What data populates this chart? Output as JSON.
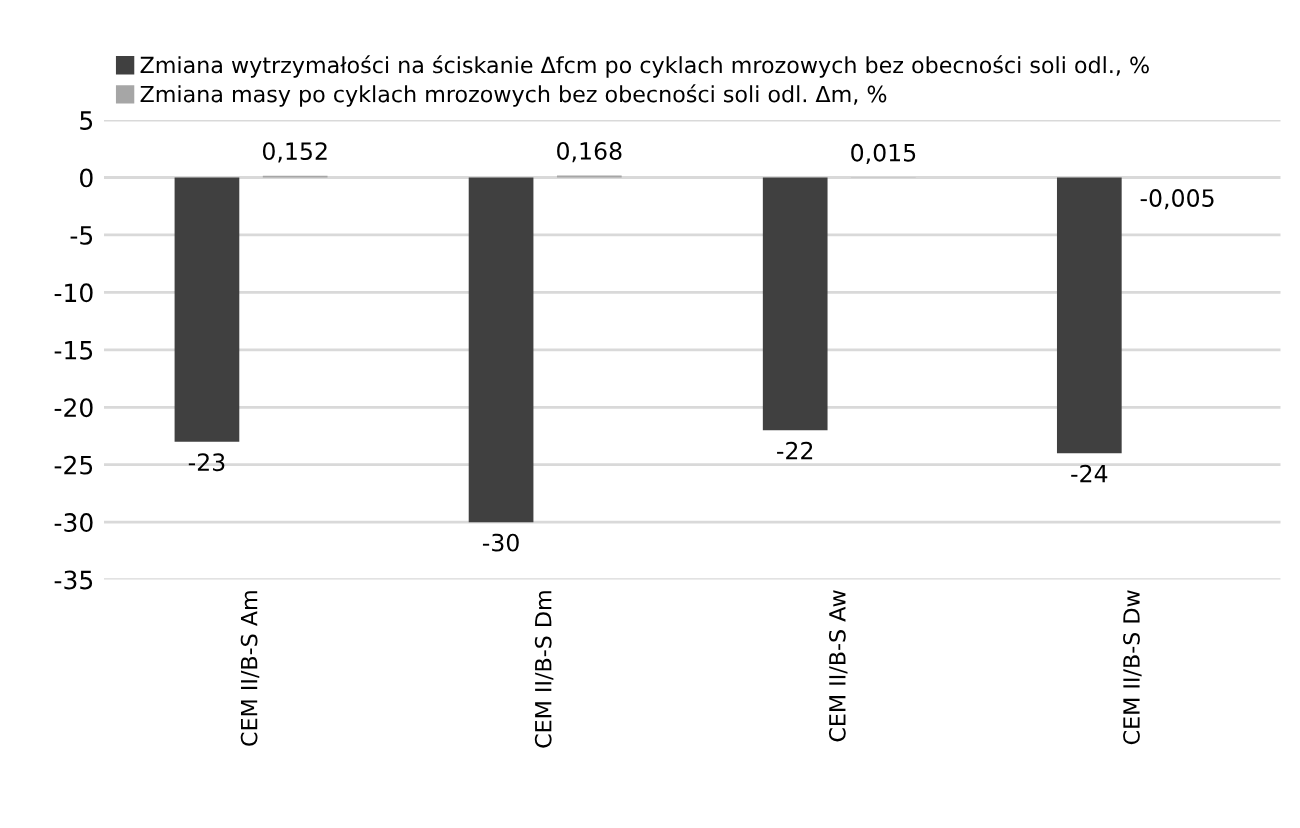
{
  "chart_data": {
    "type": "bar",
    "categories": [
      "CEM II/B-S Am",
      "CEM II/B-S Dm",
      "CEM II/B-S Aw",
      "CEM II/B-S Dw"
    ],
    "series": [
      {
        "name": "Zmiana wytrzymałości na ściskanie Δfcm po cyklach mrozowych bez obecności soli odl., %",
        "color": "#404040",
        "values": [
          -23,
          -30,
          -22,
          -24
        ],
        "value_labels": [
          "-23",
          "-30",
          "-22",
          "-24"
        ]
      },
      {
        "name": "Zmiana masy po cyklach mrozowych bez obecności soli odl. Δm, %",
        "color": "#a6a6a6",
        "values": [
          0.152,
          0.168,
          0.015,
          -0.005
        ],
        "value_labels": [
          "0,152",
          "0,168",
          "0,015",
          "-0,005"
        ]
      }
    ],
    "ylim": [
      -35,
      5
    ],
    "yticks": [
      -35,
      -30,
      -25,
      -20,
      -15,
      -10,
      -5,
      0,
      5
    ],
    "grid": "y",
    "legend": "top left"
  }
}
